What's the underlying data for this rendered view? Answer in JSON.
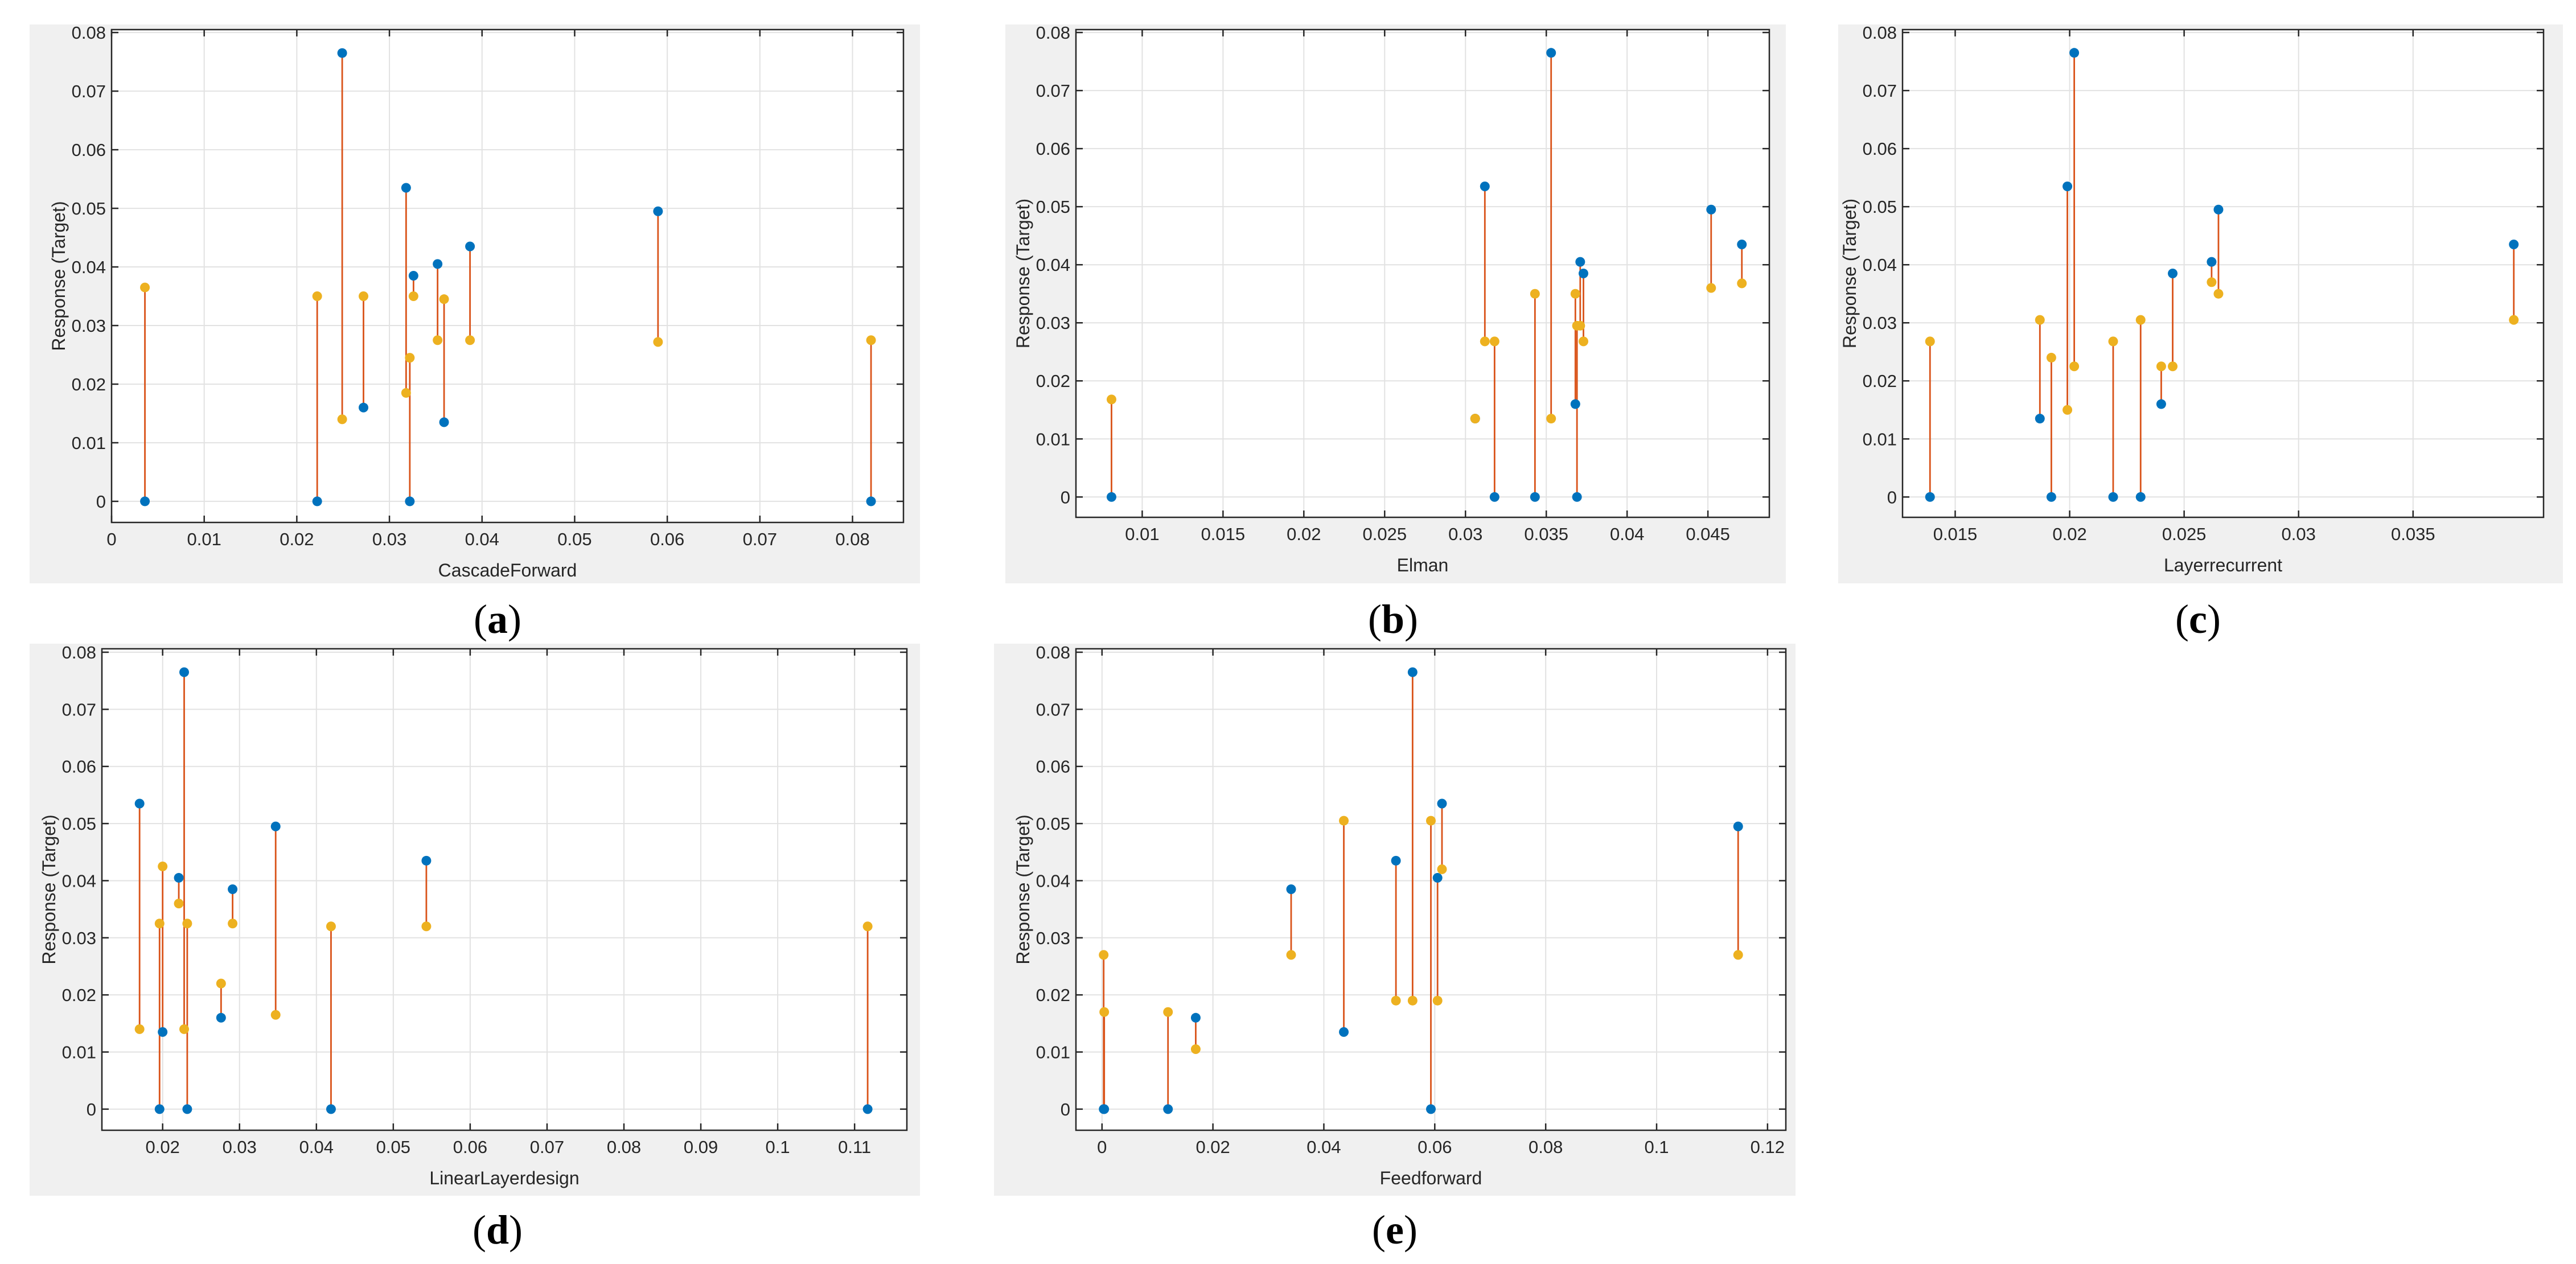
{
  "chart_data": [
    {
      "type": "scatter",
      "caption": "(a)",
      "xlabel": "CascadeForward",
      "ylabel": "Response (Target)",
      "xlim": [
        0,
        0.0855
      ],
      "ylim": [
        -0.0036,
        0.0805
      ],
      "xticks": [
        0,
        0.01,
        0.02,
        0.03,
        0.04,
        0.05,
        0.06,
        0.07,
        0.08
      ],
      "xtick_labels": [
        "0",
        "0.01",
        "0.02",
        "0.03",
        "0.04",
        "0.05",
        "0.06",
        "0.07",
        "0.08"
      ],
      "yticks": [
        0,
        0.01,
        0.02,
        0.03,
        0.04,
        0.05,
        0.06,
        0.07,
        0.08
      ],
      "ytick_labels": [
        "0",
        "0.01",
        "0.02",
        "0.03",
        "0.04",
        "0.05",
        "0.06",
        "0.07",
        "0.08"
      ],
      "grid": true,
      "x": [
        0.0036,
        0.0222,
        0.0249,
        0.0272,
        0.0318,
        0.0322,
        0.0326,
        0.0352,
        0.0359,
        0.0387,
        0.059,
        0.082
      ],
      "series": [
        {
          "color": "#0072BD",
          "marker": "circle",
          "values": [
            0,
            0,
            0.0765,
            0.016,
            0.0535,
            0,
            0.0385,
            0.0405,
            0.0135,
            0.0435,
            0.0495,
            0
          ]
        },
        {
          "color": "#EDB120",
          "marker": "circle",
          "values": [
            0.0365,
            0.035,
            0.014,
            0.035,
            0.0185,
            0.0245,
            0.035,
            0.0275,
            0.0345,
            0.0275,
            0.0272,
            0.0275
          ]
        }
      ],
      "connector_color": "#D95319"
    },
    {
      "type": "scatter",
      "caption": "(b)",
      "xlabel": "Elman",
      "ylabel": "Response (Target)",
      "xlim": [
        0.0059,
        0.0488
      ],
      "ylim": [
        -0.0035,
        0.0805
      ],
      "xticks": [
        0.01,
        0.015,
        0.02,
        0.025,
        0.03,
        0.035,
        0.04,
        0.045
      ],
      "xtick_labels": [
        "0.01",
        "0.015",
        "0.02",
        "0.025",
        "0.03",
        "0.035",
        "0.04",
        "0.045"
      ],
      "yticks": [
        0,
        0.01,
        0.02,
        0.03,
        0.04,
        0.05,
        0.06,
        0.07,
        0.08
      ],
      "ytick_labels": [
        "0",
        "0.01",
        "0.02",
        "0.03",
        "0.04",
        "0.05",
        "0.06",
        "0.07",
        "0.08"
      ],
      "grid": true,
      "x": [
        0.0081,
        0.0306,
        0.0312,
        0.0318,
        0.0343,
        0.0353,
        0.0368,
        0.0369,
        0.0371,
        0.0373,
        0.0452,
        0.0471
      ],
      "series": [
        {
          "color": "#0072BD",
          "marker": "circle",
          "values": [
            0,
            0.0135,
            0.0535,
            0,
            0,
            0.0765,
            0.016,
            0,
            0.0405,
            0.0385,
            0.0495,
            0.0435
          ]
        },
        {
          "color": "#EDB120",
          "marker": "circle",
          "values": [
            0.0168,
            0.0135,
            0.0268,
            0.0268,
            0.035,
            0.0135,
            0.035,
            0.0295,
            0.0295,
            0.0268,
            0.036,
            0.0368
          ]
        }
      ],
      "connector_color": "#D95319"
    },
    {
      "type": "scatter",
      "caption": "(c)",
      "xlabel": "Layerrecurrent",
      "ylabel": "Response (Target)",
      "xlim": [
        0.0127,
        0.0407
      ],
      "ylim": [
        -0.0035,
        0.0805
      ],
      "xticks": [
        0.015,
        0.02,
        0.025,
        0.03,
        0.035
      ],
      "xtick_labels": [
        "0.015",
        "0.02",
        "0.025",
        "0.03",
        "0.035"
      ],
      "yticks": [
        0,
        0.01,
        0.02,
        0.03,
        0.04,
        0.05,
        0.06,
        0.07,
        0.08
      ],
      "ytick_labels": [
        "0",
        "0.01",
        "0.02",
        "0.03",
        "0.04",
        "0.05",
        "0.06",
        "0.07",
        "0.08"
      ],
      "grid": true,
      "x": [
        0.0139,
        0.0187,
        0.0192,
        0.0199,
        0.0202,
        0.0219,
        0.0231,
        0.024,
        0.0245,
        0.0262,
        0.0265,
        0.0394
      ],
      "series": [
        {
          "color": "#0072BD",
          "marker": "circle",
          "values": [
            0,
            0.0135,
            0,
            0.0535,
            0.0765,
            0,
            0,
            0.016,
            0.0385,
            0.0405,
            0.0495,
            0.0435
          ]
        },
        {
          "color": "#EDB120",
          "marker": "circle",
          "values": [
            0.0268,
            0.0305,
            0.024,
            0.015,
            0.0225,
            0.0268,
            0.0305,
            0.0225,
            0.0225,
            0.037,
            0.035,
            0.0305
          ]
        }
      ],
      "connector_color": "#D95319"
    },
    {
      "type": "scatter",
      "caption": "(d)",
      "xlabel": "LinearLayerdesign",
      "ylabel": "Response (Target)",
      "xlim": [
        0.0121,
        0.1168
      ],
      "ylim": [
        -0.0037,
        0.0806
      ],
      "xticks": [
        0.02,
        0.03,
        0.04,
        0.05,
        0.06,
        0.07,
        0.08,
        0.09,
        0.1,
        0.11
      ],
      "xtick_labels": [
        "0.02",
        "0.03",
        "0.04",
        "0.05",
        "0.06",
        "0.07",
        "0.08",
        "0.09",
        "0.1",
        "0.11"
      ],
      "yticks": [
        0,
        0.01,
        0.02,
        0.03,
        0.04,
        0.05,
        0.06,
        0.07,
        0.08
      ],
      "ytick_labels": [
        "0",
        "0.01",
        "0.02",
        "0.03",
        "0.04",
        "0.05",
        "0.06",
        "0.07",
        "0.08"
      ],
      "grid": true,
      "x": [
        0.017,
        0.0196,
        0.02,
        0.0221,
        0.0228,
        0.0232,
        0.0276,
        0.0291,
        0.0347,
        0.0419,
        0.0543,
        0.1117
      ],
      "series": [
        {
          "color": "#0072BD",
          "marker": "circle",
          "values": [
            0.0535,
            0,
            0.0135,
            0.0405,
            0.0765,
            0,
            0.016,
            0.0385,
            0.0495,
            0,
            0.0435,
            0
          ]
        },
        {
          "color": "#EDB120",
          "marker": "circle",
          "values": [
            0.014,
            0.0325,
            0.0425,
            0.036,
            0.014,
            0.0325,
            0.022,
            0.0325,
            0.0165,
            0.032,
            0.032,
            0.032
          ]
        }
      ],
      "connector_color": "#D95319"
    },
    {
      "type": "scatter",
      "caption": "(e)",
      "xlabel": "Feedforward",
      "ylabel": "Response (Target)",
      "xlim": [
        -0.0047,
        0.1233
      ],
      "ylim": [
        -0.0037,
        0.0806
      ],
      "xticks": [
        0,
        0.02,
        0.04,
        0.06,
        0.08,
        0.1,
        0.12
      ],
      "xtick_labels": [
        "0",
        "0.02",
        "0.04",
        "0.06",
        "0.08",
        "0.1",
        "0.12"
      ],
      "yticks": [
        0,
        0.01,
        0.02,
        0.03,
        0.04,
        0.05,
        0.06,
        0.07,
        0.08
      ],
      "ytick_labels": [
        "0",
        "0.01",
        "0.02",
        "0.03",
        "0.04",
        "0.05",
        "0.06",
        "0.07",
        "0.08"
      ],
      "grid": true,
      "x": [
        0.0003,
        0.0004,
        0.0119,
        0.0169,
        0.0341,
        0.0436,
        0.053,
        0.056,
        0.0593,
        0.0605,
        0.0613,
        0.1147
      ],
      "series": [
        {
          "color": "#0072BD",
          "marker": "circle",
          "values": [
            0,
            0,
            0,
            0.016,
            0.0385,
            0.0135,
            0.0435,
            0.0765,
            0,
            0.0405,
            0.0535,
            0.0495
          ]
        },
        {
          "color": "#EDB120",
          "marker": "circle",
          "values": [
            0.027,
            0.017,
            0.017,
            0.0105,
            0.027,
            0.0505,
            0.019,
            0.019,
            0.0505,
            0.019,
            0.042,
            0.027
          ]
        }
      ],
      "connector_color": "#D95319"
    }
  ]
}
